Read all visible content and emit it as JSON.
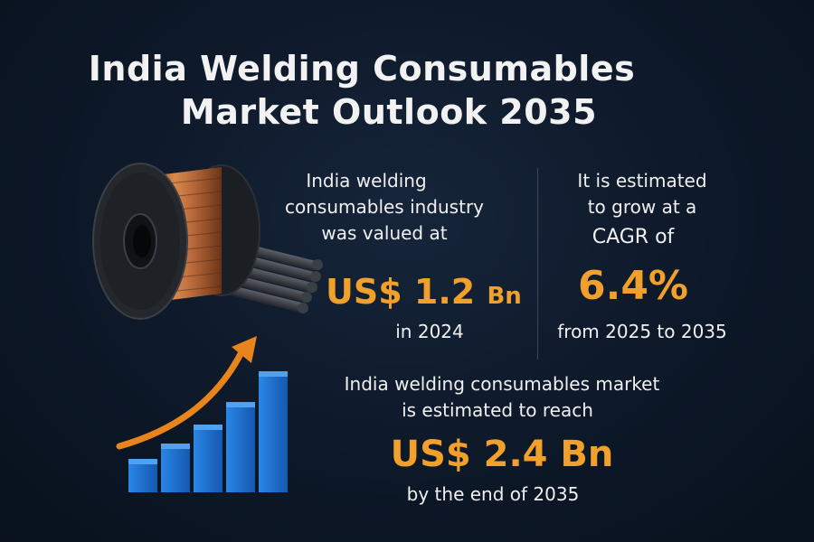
{
  "title": {
    "line1": "India Welding Consumables",
    "line2": "Market Outlook 2035"
  },
  "left_stat": {
    "line1": "India welding",
    "line2": "consumables industry",
    "line3": "was valued at",
    "value": "US$ 1.2",
    "unit": "Bn",
    "year": "in 2024"
  },
  "right_stat": {
    "line1": "It is estimated",
    "line2": "to grow at a",
    "line3": "CAGR of",
    "value": "6.4%",
    "period": "from 2025 to 2035"
  },
  "bottom_stat": {
    "line1": "India welding consumables market",
    "line2": "is estimated to reach",
    "value": "US$ 2.4 Bn",
    "footer": "by the end of 2035"
  },
  "icons": [
    "welding-wire-spool-icon",
    "welding-rods-icon",
    "growth-bar-chart-icon",
    "upward-arrow-icon"
  ],
  "colors": {
    "background": "#0d1828",
    "accent": "#f0a02b",
    "text": "#f0f0f0",
    "bars": "#1f6fd1"
  }
}
